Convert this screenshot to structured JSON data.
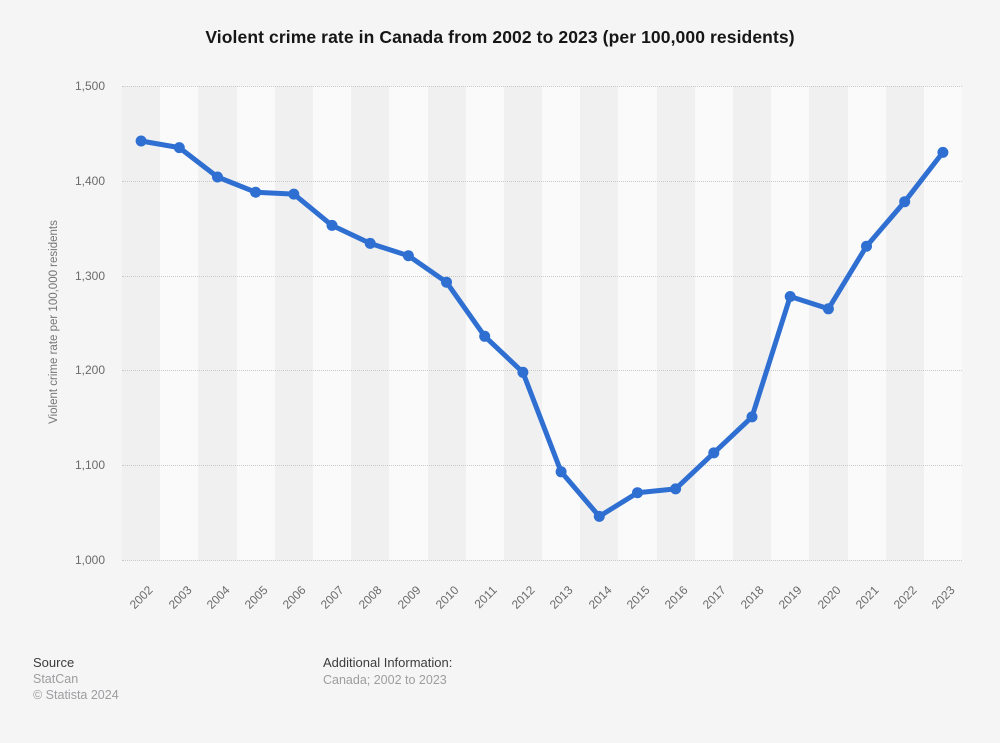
{
  "page": {
    "background": "#f5f5f6"
  },
  "chart_data": {
    "type": "line",
    "title": "Violent crime rate in Canada from 2002 to 2023 (per 100,000 residents)",
    "ylabel": "Violent crime rate per 100,000 residents",
    "xlabel": "",
    "categories": [
      "2002",
      "2003",
      "2004",
      "2005",
      "2006",
      "2007",
      "2008",
      "2009",
      "2010",
      "2011",
      "2012",
      "2013",
      "2014",
      "2015",
      "2016",
      "2017",
      "2018",
      "2019",
      "2020",
      "2021",
      "2022",
      "2023"
    ],
    "values": [
      1442,
      1435,
      1404,
      1388,
      1386,
      1353,
      1334,
      1321,
      1293,
      1236,
      1198,
      1093,
      1046,
      1071,
      1075,
      1113,
      1151,
      1278,
      1265,
      1331,
      1378,
      1430
    ],
    "series_name": "Violent crime rate per 100,000 residents",
    "ylim": [
      1000,
      1500
    ],
    "yticks": [
      {
        "value": 1500,
        "label": "1,500"
      },
      {
        "value": 1400,
        "label": "1,400"
      },
      {
        "value": 1300,
        "label": "1,300"
      },
      {
        "value": 1200,
        "label": "1,200"
      },
      {
        "value": 1100,
        "label": "1,100"
      },
      {
        "value": 1000,
        "label": "1,000"
      }
    ],
    "grid": "horizontal-dotted",
    "legend_position": "none",
    "line_color": "#2f6fd2",
    "grid_color": "#c9c9c9",
    "band_color_even": "#f0f0f1",
    "band_color_odd": "#fafafa"
  },
  "footer": {
    "source_label": "Source",
    "source_name": "StatCan",
    "copyright": "© Statista 2024",
    "additional_label": "Additional Information:",
    "additional_value": "Canada; 2002 to 2023"
  }
}
